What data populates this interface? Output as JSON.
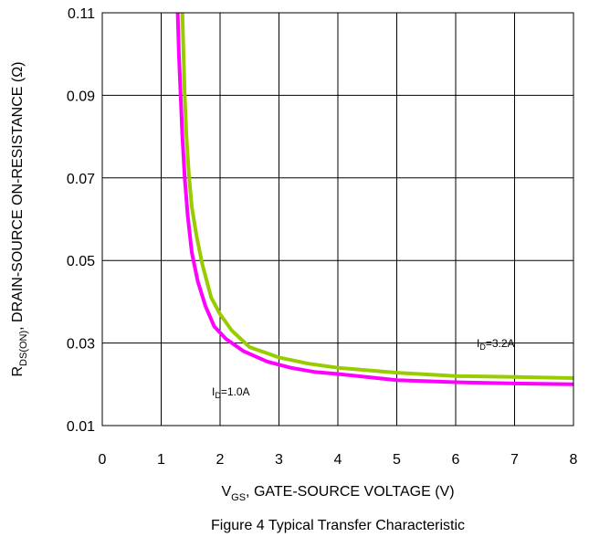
{
  "chart_data": {
    "type": "line",
    "title": "",
    "caption": "Figure 4 Typical Transfer Characteristic",
    "xlabel": {
      "main": "V",
      "sub": "GS",
      "rest": ", GATE-SOURCE VOLTAGE (V)"
    },
    "ylabel": {
      "main": "R",
      "sub": "DS(ON)",
      "rest": ", DRAIN-SOURCE ON-RESISTANCE (Ω)"
    },
    "xlim": [
      0,
      8
    ],
    "ylim": [
      0.01,
      0.11
    ],
    "xticks": [
      "0",
      "1",
      "2",
      "3",
      "4",
      "5",
      "6",
      "7",
      "8"
    ],
    "yticks": [
      "0.01",
      "0.03",
      "0.05",
      "0.07",
      "0.09",
      "0.11"
    ],
    "grid": true,
    "series": [
      {
        "name": "ID=3.2A",
        "label_main": "I",
        "label_sub": "D",
        "label_rest": "=3.2A",
        "color": "#99cc00",
        "x": [
          1.36,
          1.38,
          1.4,
          1.43,
          1.47,
          1.52,
          1.6,
          1.7,
          1.85,
          2.0,
          2.2,
          2.5,
          3.0,
          3.5,
          4.0,
          5.0,
          6.0,
          7.0,
          8.0
        ],
        "y": [
          0.11,
          0.1,
          0.09,
          0.08,
          0.071,
          0.063,
          0.056,
          0.049,
          0.041,
          0.037,
          0.033,
          0.029,
          0.0265,
          0.025,
          0.024,
          0.0228,
          0.022,
          0.0218,
          0.0215
        ]
      },
      {
        "name": "ID=1.0A",
        "label_main": "I",
        "label_sub": "D",
        "label_rest": "=1.0A",
        "color": "#ff00ff",
        "x": [
          1.28,
          1.3,
          1.33,
          1.36,
          1.4,
          1.45,
          1.52,
          1.62,
          1.75,
          1.9,
          2.1,
          2.4,
          2.8,
          3.2,
          3.6,
          4.0,
          5.0,
          6.0,
          7.0,
          8.0
        ],
        "y": [
          0.11,
          0.1,
          0.09,
          0.08,
          0.07,
          0.061,
          0.052,
          0.045,
          0.039,
          0.034,
          0.031,
          0.028,
          0.0255,
          0.024,
          0.023,
          0.0225,
          0.021,
          0.0205,
          0.0202,
          0.02
        ]
      }
    ]
  }
}
